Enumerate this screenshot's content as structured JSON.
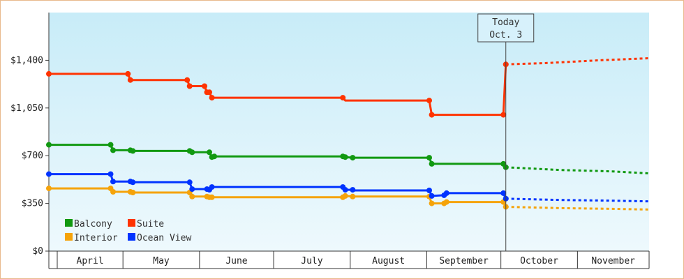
{
  "chart_data": {
    "type": "line",
    "title": "",
    "xlabel": "",
    "ylabel": "",
    "x_domain": [
      "2024-04-01",
      "2024-11-30"
    ],
    "ylim": [
      0,
      1750
    ],
    "yticks": [
      0,
      350,
      700,
      1050,
      1400
    ],
    "ytick_labels": [
      "$0",
      "$350",
      "$700",
      "$1,050",
      "$1,400"
    ],
    "months": [
      "April",
      "May",
      "June",
      "July",
      "August",
      "September",
      "October",
      "November"
    ],
    "today": {
      "date": "2024-10-03",
      "label_line1": "Today",
      "label_line2": "Oct. 3"
    },
    "colors": {
      "plot_bg_top": "#c8ecf8",
      "plot_bg_bottom": "#eef9fd",
      "border": "#e8b98c"
    },
    "series": [
      {
        "name": "Suite",
        "color": "#ff3300",
        "points": [
          {
            "x": "2024-04-01",
            "y": 1300,
            "marker": true
          },
          {
            "x": "2024-05-03",
            "y": 1300,
            "marker": true
          },
          {
            "x": "2024-05-04",
            "y": 1255,
            "marker": true
          },
          {
            "x": "2024-05-27",
            "y": 1255,
            "marker": true
          },
          {
            "x": "2024-05-28",
            "y": 1210,
            "marker": true
          },
          {
            "x": "2024-06-03",
            "y": 1210,
            "marker": true
          },
          {
            "x": "2024-06-04",
            "y": 1165,
            "marker": true
          },
          {
            "x": "2024-06-05",
            "y": 1165,
            "marker": true
          },
          {
            "x": "2024-06-06",
            "y": 1125,
            "marker": true
          },
          {
            "x": "2024-07-29",
            "y": 1125,
            "marker": true
          },
          {
            "x": "2024-07-30",
            "y": 1105,
            "marker": false
          },
          {
            "x": "2024-09-02",
            "y": 1105,
            "marker": true
          },
          {
            "x": "2024-09-03",
            "y": 1000,
            "marker": true
          },
          {
            "x": "2024-10-02",
            "y": 1000,
            "marker": true
          },
          {
            "x": "2024-10-03",
            "y": 1370,
            "marker": true
          }
        ],
        "forecast": [
          {
            "x": "2024-10-03",
            "y": 1370
          },
          {
            "x": "2024-10-20",
            "y": 1380
          },
          {
            "x": "2024-11-10",
            "y": 1400
          },
          {
            "x": "2024-11-30",
            "y": 1415
          }
        ]
      },
      {
        "name": "Balcony",
        "color": "#119911",
        "points": [
          {
            "x": "2024-04-01",
            "y": 780,
            "marker": true
          },
          {
            "x": "2024-04-26",
            "y": 780,
            "marker": true
          },
          {
            "x": "2024-04-27",
            "y": 740,
            "marker": true
          },
          {
            "x": "2024-05-04",
            "y": 740,
            "marker": true
          },
          {
            "x": "2024-05-05",
            "y": 735,
            "marker": true
          },
          {
            "x": "2024-05-28",
            "y": 735,
            "marker": true
          },
          {
            "x": "2024-05-29",
            "y": 725,
            "marker": true
          },
          {
            "x": "2024-06-05",
            "y": 725,
            "marker": true
          },
          {
            "x": "2024-06-06",
            "y": 690,
            "marker": true
          },
          {
            "x": "2024-06-07",
            "y": 695,
            "marker": true
          },
          {
            "x": "2024-07-29",
            "y": 695,
            "marker": true
          },
          {
            "x": "2024-07-30",
            "y": 690,
            "marker": true
          },
          {
            "x": "2024-08-02",
            "y": 685,
            "marker": true
          },
          {
            "x": "2024-09-02",
            "y": 685,
            "marker": true
          },
          {
            "x": "2024-09-03",
            "y": 640,
            "marker": true
          },
          {
            "x": "2024-10-02",
            "y": 640,
            "marker": true
          },
          {
            "x": "2024-10-03",
            "y": 615,
            "marker": true
          }
        ],
        "forecast": [
          {
            "x": "2024-10-03",
            "y": 615
          },
          {
            "x": "2024-10-25",
            "y": 595
          },
          {
            "x": "2024-11-15",
            "y": 585
          },
          {
            "x": "2024-11-30",
            "y": 570
          }
        ]
      },
      {
        "name": "Ocean View",
        "color": "#0033ff",
        "points": [
          {
            "x": "2024-04-01",
            "y": 565,
            "marker": true
          },
          {
            "x": "2024-04-26",
            "y": 565,
            "marker": true
          },
          {
            "x": "2024-04-27",
            "y": 510,
            "marker": true
          },
          {
            "x": "2024-05-04",
            "y": 510,
            "marker": true
          },
          {
            "x": "2024-05-05",
            "y": 505,
            "marker": true
          },
          {
            "x": "2024-05-28",
            "y": 505,
            "marker": true
          },
          {
            "x": "2024-05-29",
            "y": 455,
            "marker": true
          },
          {
            "x": "2024-06-04",
            "y": 455,
            "marker": true
          },
          {
            "x": "2024-06-05",
            "y": 450,
            "marker": true
          },
          {
            "x": "2024-06-06",
            "y": 470,
            "marker": true
          },
          {
            "x": "2024-07-29",
            "y": 470,
            "marker": true
          },
          {
            "x": "2024-07-30",
            "y": 450,
            "marker": true
          },
          {
            "x": "2024-08-02",
            "y": 450,
            "marker": true
          },
          {
            "x": "2024-08-03",
            "y": 445,
            "marker": false
          },
          {
            "x": "2024-09-02",
            "y": 445,
            "marker": true
          },
          {
            "x": "2024-09-03",
            "y": 405,
            "marker": true
          },
          {
            "x": "2024-09-08",
            "y": 410,
            "marker": true
          },
          {
            "x": "2024-09-09",
            "y": 425,
            "marker": true
          },
          {
            "x": "2024-10-02",
            "y": 425,
            "marker": true
          },
          {
            "x": "2024-10-03",
            "y": 385,
            "marker": true
          }
        ],
        "forecast": [
          {
            "x": "2024-10-03",
            "y": 385
          },
          {
            "x": "2024-10-25",
            "y": 375
          },
          {
            "x": "2024-11-15",
            "y": 370
          },
          {
            "x": "2024-11-30",
            "y": 365
          }
        ]
      },
      {
        "name": "Interior",
        "color": "#f5a30a",
        "points": [
          {
            "x": "2024-04-01",
            "y": 460,
            "marker": true
          },
          {
            "x": "2024-04-26",
            "y": 460,
            "marker": true
          },
          {
            "x": "2024-04-27",
            "y": 435,
            "marker": true
          },
          {
            "x": "2024-05-04",
            "y": 435,
            "marker": true
          },
          {
            "x": "2024-05-05",
            "y": 430,
            "marker": true
          },
          {
            "x": "2024-05-28",
            "y": 430,
            "marker": true
          },
          {
            "x": "2024-05-29",
            "y": 400,
            "marker": true
          },
          {
            "x": "2024-06-04",
            "y": 400,
            "marker": true
          },
          {
            "x": "2024-06-05",
            "y": 395,
            "marker": true
          },
          {
            "x": "2024-06-06",
            "y": 395,
            "marker": true
          },
          {
            "x": "2024-07-29",
            "y": 395,
            "marker": true
          },
          {
            "x": "2024-07-30",
            "y": 405,
            "marker": true
          },
          {
            "x": "2024-08-02",
            "y": 400,
            "marker": true
          },
          {
            "x": "2024-09-02",
            "y": 400,
            "marker": true
          },
          {
            "x": "2024-09-03",
            "y": 350,
            "marker": true
          },
          {
            "x": "2024-09-08",
            "y": 350,
            "marker": true
          },
          {
            "x": "2024-09-09",
            "y": 360,
            "marker": true
          },
          {
            "x": "2024-10-02",
            "y": 360,
            "marker": true
          },
          {
            "x": "2024-10-03",
            "y": 325,
            "marker": true
          }
        ],
        "forecast": [
          {
            "x": "2024-10-03",
            "y": 325
          },
          {
            "x": "2024-10-25",
            "y": 315
          },
          {
            "x": "2024-11-15",
            "y": 310
          },
          {
            "x": "2024-11-30",
            "y": 305
          }
        ]
      }
    ],
    "legend": {
      "placement": "bottom-left",
      "items": [
        {
          "name": "Balcony",
          "color": "#119911"
        },
        {
          "name": "Suite",
          "color": "#ff3300"
        },
        {
          "name": "Interior",
          "color": "#f5a30a"
        },
        {
          "name": "Ocean View",
          "color": "#0033ff"
        }
      ]
    }
  }
}
